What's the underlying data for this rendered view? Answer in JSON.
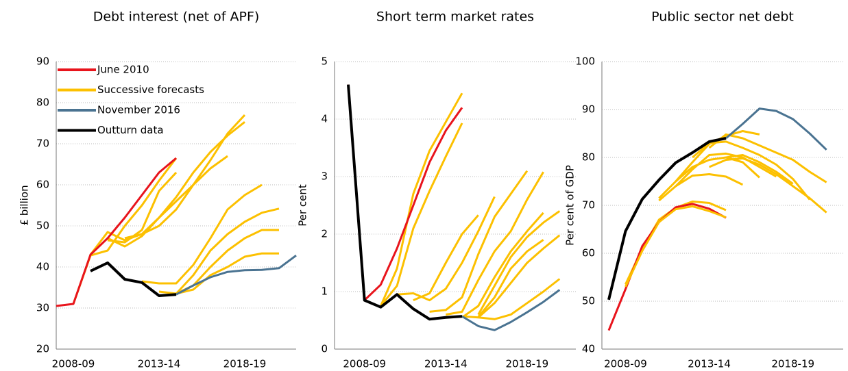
{
  "chart_data": [
    {
      "type": "line",
      "title": "Debt interest (net of APF)",
      "y_label": "£ billion",
      "categories": [
        null,
        "2008-09",
        null,
        null,
        null,
        null,
        "2013-14",
        null,
        null,
        null,
        null,
        "2018-19",
        null,
        null,
        null
      ],
      "ylim": [
        20,
        90
      ],
      "yticks": [
        20,
        30,
        40,
        50,
        60,
        70,
        80,
        90
      ],
      "grid": true,
      "legend": "upper left",
      "series": [
        {
          "name": "June 2010",
          "color": "#e8141c",
          "values": [
            30.5,
            31,
            43,
            47,
            52,
            57.5,
            63,
            66.5,
            null,
            null,
            null,
            null,
            null,
            null,
            null
          ]
        },
        {
          "name": "Successive forecasts",
          "color": "#fcc000",
          "values": [
            null,
            null,
            null,
            null,
            null,
            null,
            null,
            33.5,
            34.5,
            38,
            40,
            42.5,
            43.3,
            43.3,
            null
          ]
        },
        {
          "name": "November 2016",
          "color": "#4a7391",
          "values": [
            null,
            null,
            null,
            null,
            null,
            null,
            null,
            33.3,
            35.5,
            37.5,
            38.8,
            39.2,
            39.3,
            39.7,
            42.8
          ]
        },
        {
          "name": "Outturn data",
          "color": "#000000",
          "values": [
            null,
            null,
            39,
            41,
            37,
            36.2,
            33,
            33.3,
            null,
            null,
            null,
            null,
            null,
            null,
            null
          ]
        },
        {
          "color": "#fcc000",
          "values": [
            null,
            31,
            42.8,
            44,
            50,
            55,
            61,
            66.5,
            null,
            null,
            null,
            null,
            null,
            null,
            null
          ]
        },
        {
          "color": "#fcc000",
          "values": [
            null,
            null,
            43,
            48.5,
            46.5,
            48,
            50,
            54,
            60,
            66,
            72.5,
            77,
            null,
            null,
            null
          ]
        },
        {
          "color": "#fcc000",
          "values": [
            null,
            null,
            null,
            47,
            45,
            47.5,
            52,
            57,
            63,
            68,
            72,
            75.3,
            null,
            null,
            null
          ]
        },
        {
          "color": "#fcc000",
          "values": [
            null,
            null,
            null,
            null,
            47,
            48,
            52,
            56,
            60,
            64,
            67,
            null,
            null,
            null,
            null
          ]
        },
        {
          "color": "#fcc000",
          "values": [
            null,
            null,
            null,
            46.5,
            46,
            49,
            58.5,
            63,
            null,
            null,
            null,
            null,
            null,
            null,
            null
          ]
        },
        {
          "color": "#fcc000",
          "values": [
            null,
            null,
            null,
            null,
            null,
            36.5,
            36,
            36,
            40.5,
            47,
            54,
            57.5,
            60,
            null,
            null
          ]
        },
        {
          "color": "#fcc000",
          "values": [
            null,
            null,
            null,
            null,
            null,
            null,
            34,
            33.5,
            38,
            44,
            48,
            51,
            53.2,
            54.2,
            null
          ]
        },
        {
          "color": "#fcc000",
          "values": [
            null,
            null,
            null,
            null,
            null,
            null,
            null,
            33.5,
            35.5,
            40,
            44,
            47,
            49,
            49,
            null
          ]
        }
      ]
    },
    {
      "type": "line",
      "title": "Short term market rates",
      "y_label": "Per cent",
      "categories": [
        null,
        "2008-09",
        null,
        null,
        null,
        null,
        "2013-14",
        null,
        null,
        null,
        null,
        "2018-19",
        null,
        null,
        null
      ],
      "ylim": [
        0,
        5
      ],
      "yticks": [
        0,
        1,
        2,
        3,
        4,
        5
      ],
      "grid": true,
      "series": [
        {
          "name": "June 2010",
          "color": "#e8141c",
          "values": [
            4.6,
            0.85,
            1.12,
            1.75,
            2.5,
            3.25,
            3.8,
            4.2,
            null,
            null,
            null,
            null,
            null,
            null,
            null
          ]
        },
        {
          "name": "Successive forecasts",
          "color": "#fcc000",
          "values": [
            null,
            null,
            null,
            null,
            null,
            null,
            null,
            0.57,
            0.55,
            0.52,
            0.6,
            0.8,
            1.0,
            1.22,
            null
          ]
        },
        {
          "name": "November 2016",
          "color": "#4a7391",
          "values": [
            null,
            null,
            null,
            null,
            null,
            null,
            null,
            0.57,
            0.4,
            0.33,
            0.47,
            0.64,
            0.82,
            1.03,
            null
          ]
        },
        {
          "name": "Outturn data",
          "color": "#000000",
          "values": [
            4.6,
            0.85,
            0.73,
            0.95,
            0.7,
            0.52,
            0.55,
            0.57,
            null,
            null,
            null,
            null,
            null,
            null,
            null
          ]
        },
        {
          "color": "#fcc000",
          "values": [
            null,
            null,
            0.75,
            1.4,
            2.7,
            3.45,
            3.95,
            4.45,
            null,
            null,
            null,
            null,
            null,
            null,
            null
          ]
        },
        {
          "color": "#fcc000",
          "values": [
            null,
            null,
            0.75,
            1.1,
            2.1,
            2.75,
            3.35,
            3.93,
            null,
            null,
            null,
            null,
            null,
            null,
            null
          ]
        },
        {
          "color": "#fcc000",
          "values": [
            null,
            null,
            null,
            0.95,
            0.97,
            0.85,
            1.05,
            1.5,
            2.05,
            2.65,
            null,
            null,
            null,
            null,
            null
          ]
        },
        {
          "color": "#fcc000",
          "values": [
            null,
            null,
            null,
            null,
            0.85,
            0.97,
            1.5,
            2.0,
            2.33,
            null,
            null,
            null,
            null,
            null,
            null
          ]
        },
        {
          "color": "#fcc000",
          "values": [
            null,
            null,
            null,
            null,
            null,
            0.65,
            0.68,
            0.9,
            1.65,
            2.3,
            2.7,
            3.1,
            null,
            null,
            null
          ]
        },
        {
          "color": "#fcc000",
          "values": [
            null,
            null,
            null,
            null,
            null,
            null,
            0.6,
            0.65,
            1.2,
            1.7,
            2.05,
            2.6,
            3.08,
            null,
            null
          ]
        },
        {
          "color": "#fcc000",
          "values": [
            null,
            null,
            null,
            null,
            null,
            null,
            null,
            0.55,
            0.75,
            1.25,
            1.7,
            2.05,
            2.37,
            null,
            null
          ]
        },
        {
          "color": "#fcc000",
          "values": [
            null,
            null,
            null,
            null,
            null,
            null,
            null,
            null,
            0.6,
            1.1,
            1.6,
            1.95,
            2.2,
            2.4,
            null
          ]
        },
        {
          "color": "#fcc000",
          "values": [
            null,
            null,
            null,
            null,
            null,
            null,
            null,
            null,
            0.55,
            0.8,
            1.15,
            1.5,
            1.75,
            1.98,
            null
          ]
        },
        {
          "color": "#fcc000",
          "values": [
            null,
            null,
            null,
            null,
            null,
            null,
            null,
            null,
            0.56,
            0.9,
            1.4,
            1.7,
            1.9,
            null,
            null
          ]
        }
      ]
    },
    {
      "type": "line",
      "title": "Public sector net debt",
      "y_label": "Per cent of GDP",
      "categories": [
        null,
        "2008-09",
        null,
        null,
        null,
        null,
        "2013-14",
        null,
        null,
        null,
        null,
        "2018-19",
        null,
        null,
        null
      ],
      "ylim": [
        40,
        100
      ],
      "yticks": [
        40,
        50,
        60,
        70,
        80,
        90,
        100
      ],
      "grid": true,
      "series": [
        {
          "name": "June 2010",
          "color": "#e8141c",
          "values": [
            43.9,
            52.5,
            61.5,
            66.5,
            69.6,
            70.3,
            69.3,
            67.4,
            null,
            null,
            null,
            null,
            null,
            null,
            null
          ]
        },
        {
          "name": "Successive forecasts",
          "color": "#fcc000",
          "values": [
            null,
            53,
            60.5,
            66.5,
            69.2,
            69.8,
            68.8,
            67.5,
            null,
            null,
            null,
            null,
            null,
            null,
            null
          ]
        },
        {
          "name": "November 2016",
          "color": "#4a7391",
          "values": [
            null,
            null,
            null,
            null,
            null,
            null,
            null,
            84,
            87,
            90.2,
            89.7,
            88,
            85,
            81.6,
            null
          ]
        },
        {
          "name": "Outturn data",
          "color": "#000000",
          "values": [
            50.3,
            64.6,
            71.3,
            75.3,
            78.9,
            81,
            83.3,
            84,
            null,
            null,
            null,
            null,
            null,
            null,
            null
          ]
        },
        {
          "color": "#fcc000",
          "values": [
            null,
            53.5,
            61,
            67,
            69.5,
            70.8,
            70.5,
            69,
            null,
            null,
            null,
            null,
            null,
            null,
            null
          ]
        },
        {
          "color": "#fcc000",
          "values": [
            null,
            null,
            null,
            71,
            74,
            76.2,
            76.5,
            76,
            74.3,
            null,
            null,
            null,
            null,
            null,
            null
          ]
        },
        {
          "color": "#fcc000",
          "values": [
            null,
            null,
            null,
            71.5,
            75,
            78,
            79.5,
            80,
            79,
            75.8,
            null,
            null,
            null,
            null,
            null
          ]
        },
        {
          "color": "#fcc000",
          "values": [
            null,
            null,
            null,
            null,
            74,
            77.5,
            80.5,
            80.8,
            80,
            78,
            76,
            null,
            null,
            null,
            null
          ]
        },
        {
          "color": "#fcc000",
          "values": [
            null,
            null,
            null,
            null,
            75,
            79,
            82.8,
            84.5,
            85.5,
            84.8,
            null,
            null,
            null,
            null,
            null
          ]
        },
        {
          "color": "#fcc000",
          "values": [
            null,
            null,
            null,
            null,
            null,
            80,
            83,
            83.3,
            82,
            80.5,
            78.5,
            75.5,
            71.2,
            null,
            null
          ]
        },
        {
          "color": "#fcc000",
          "values": [
            null,
            null,
            null,
            null,
            null,
            null,
            82,
            84.8,
            84,
            82.5,
            81,
            79.5,
            77,
            74.8,
            null
          ]
        },
        {
          "color": "#fcc000",
          "values": [
            null,
            null,
            null,
            null,
            null,
            null,
            78,
            79.5,
            79.8,
            78.5,
            76.5,
            74,
            71.5,
            68.5,
            null
          ]
        },
        {
          "color": "#fcc000",
          "values": [
            null,
            null,
            null,
            null,
            null,
            null,
            null,
            80,
            80.5,
            79,
            77,
            74.5,
            null,
            null,
            null
          ]
        }
      ]
    }
  ]
}
